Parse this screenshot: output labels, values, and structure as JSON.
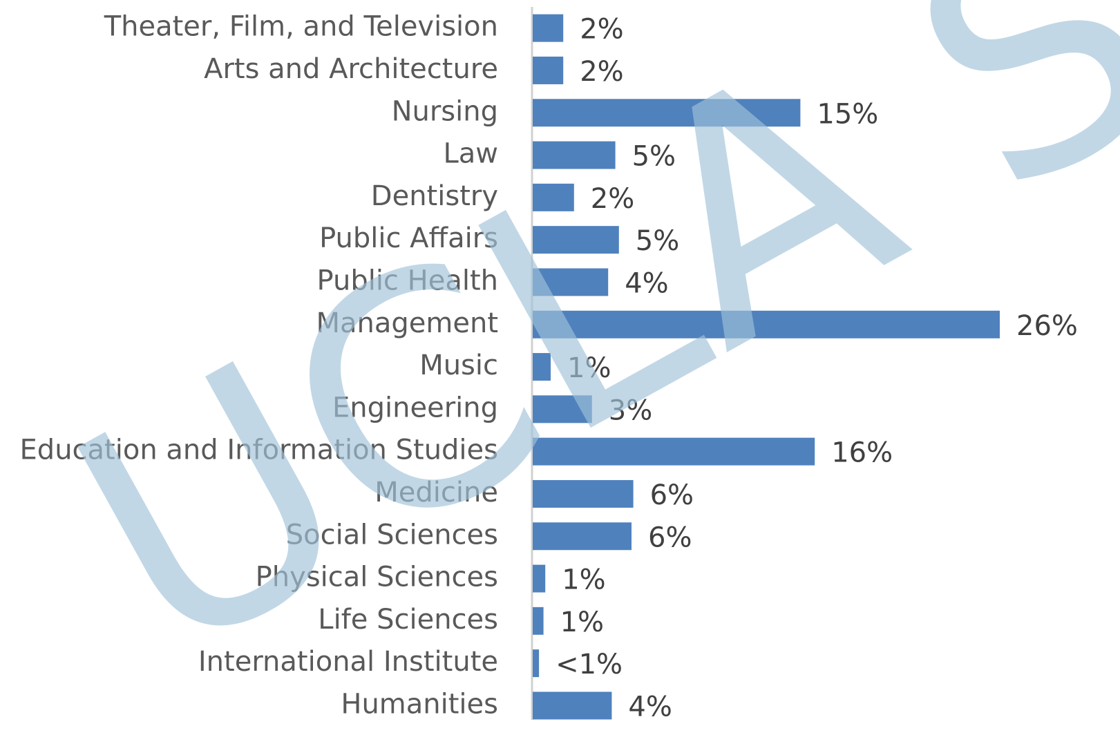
{
  "chart_data": {
    "type": "barh",
    "categories": [
      "Theater, Film, and Television",
      "Arts and Architecture",
      "Nursing",
      "Law",
      "Dentistry",
      "Public Affairs",
      "Public Health",
      "Management",
      "Music",
      "Engineering",
      "Education and Information Studies",
      "Medicine",
      "Social Sciences",
      "Physical Sciences",
      "Life Sciences",
      "International Institute",
      "Humanities"
    ],
    "values": [
      1.7,
      1.7,
      14.9,
      4.6,
      2.3,
      4.8,
      4.2,
      26,
      1.0,
      3.3,
      15.7,
      5.6,
      5.5,
      0.7,
      0.6,
      0.35,
      4.4
    ],
    "value_labels": [
      "2%",
      "2%",
      "15%",
      "5%",
      "2%",
      "5%",
      "4%",
      "26%",
      "1%",
      "3%",
      "16%",
      "6%",
      "6%",
      "1%",
      "1%",
      "<1%",
      "4%"
    ],
    "color": "#4f81bd",
    "watermark": "UCLA SAIRO"
  }
}
